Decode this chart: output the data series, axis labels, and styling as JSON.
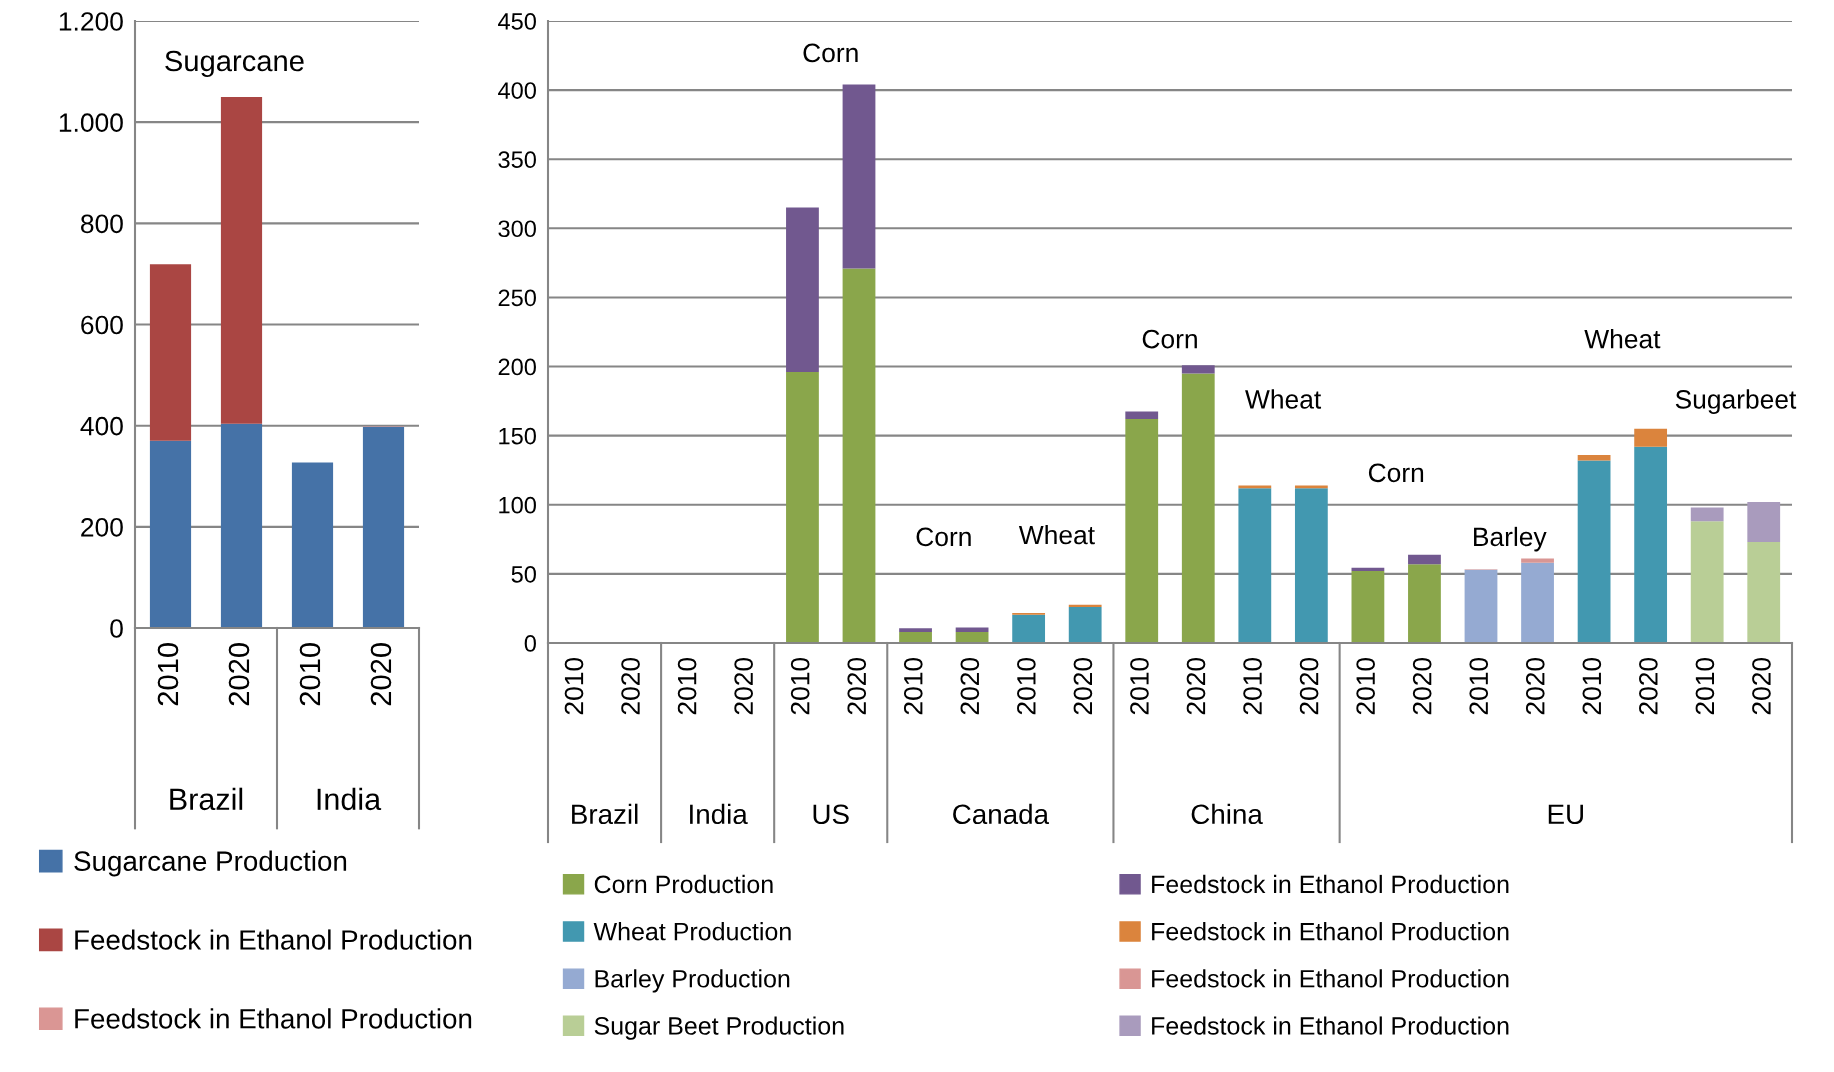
{
  "chart_data": [
    {
      "type": "bar",
      "stacked": true,
      "categories": [
        "2010",
        "2020",
        "2010",
        "2020"
      ],
      "series": [
        {
          "name": "Sugarcane Production",
          "color": "#4572a7",
          "values": [
            370,
            404,
            327,
            398
          ]
        },
        {
          "name": "Feedstock in Ethanol Production",
          "color": "#aa4643",
          "values": [
            349,
            646,
            null,
            null
          ]
        },
        {
          "name": "Feedstock in Ethanol Production",
          "color": "#da9694",
          "values": [
            null,
            null,
            null,
            1
          ]
        }
      ],
      "ylim": [
        0,
        1200
      ],
      "yticks": [
        0,
        200,
        400,
        600,
        800,
        {
          "value": 1000,
          "label": "1.000"
        },
        {
          "value": 1200,
          "label": "1.200"
        }
      ],
      "grid": "y",
      "legend": "bottom",
      "annotations": [
        "Brazil",
        "India",
        "Sugarcane"
      ]
    },
    {
      "type": "bar",
      "stacked": true,
      "categories": [
        "2010",
        "2020",
        "2010",
        "2020",
        "2010",
        "2020",
        "2010",
        "2020",
        "2010",
        "2020",
        "2010",
        "2020",
        "2010",
        "2020",
        "2010",
        "2020",
        "2010",
        "2020",
        "2010",
        "2020",
        "2010",
        "2020"
      ],
      "series": [
        {
          "name": "Corn Production",
          "color": "#8aa64b",
          "values": [
            null,
            null,
            null,
            null,
            196,
            271,
            8,
            8,
            null,
            null,
            162,
            195,
            null,
            null,
            52,
            57,
            null,
            null,
            null,
            null,
            null,
            null
          ]
        },
        {
          "name": "Wheat Production",
          "color": "#4298b0",
          "values": [
            null,
            null,
            null,
            null,
            null,
            null,
            null,
            null,
            20.5,
            26,
            null,
            null,
            112,
            112,
            null,
            null,
            null,
            null,
            132,
            142,
            null,
            null
          ]
        },
        {
          "name": "Barley Production",
          "color": "#95aad2",
          "values": [
            null,
            null,
            null,
            null,
            null,
            null,
            null,
            null,
            null,
            null,
            null,
            null,
            null,
            null,
            null,
            null,
            53,
            58,
            null,
            null,
            null,
            null
          ]
        },
        {
          "name": "Sugar Beet Production",
          "color": "#b9ce96",
          "values": [
            null,
            null,
            null,
            null,
            null,
            null,
            null,
            null,
            null,
            null,
            null,
            null,
            null,
            null,
            null,
            null,
            null,
            null,
            null,
            null,
            88,
            73
          ]
        },
        {
          "name": "Feedstock in Ethanol Production",
          "color": "#71588f",
          "values": [
            null,
            null,
            null,
            null,
            119,
            133,
            2.7,
            3.2,
            null,
            null,
            5.5,
            6,
            null,
            null,
            2.4,
            6.8,
            null,
            null,
            null,
            null,
            null,
            null
          ]
        },
        {
          "name": "Feedstock in Ethanol Production",
          "color": "#db843d",
          "values": [
            null,
            null,
            null,
            null,
            null,
            null,
            null,
            null,
            1.2,
            1.7,
            null,
            null,
            2,
            2,
            null,
            null,
            null,
            null,
            4,
            13,
            null,
            null
          ]
        },
        {
          "name": "Feedstock in Ethanol Production",
          "color": "#d99694",
          "values": [
            null,
            null,
            null,
            null,
            null,
            null,
            null,
            null,
            null,
            null,
            null,
            null,
            null,
            null,
            null,
            null,
            0.4,
            3.2,
            null,
            null,
            null,
            null
          ]
        },
        {
          "name": "Feedstock in Ethanol Production",
          "color": "#a99bbd",
          "values": [
            null,
            null,
            null,
            null,
            null,
            null,
            null,
            null,
            null,
            null,
            null,
            null,
            null,
            null,
            null,
            null,
            null,
            null,
            null,
            null,
            10,
            29
          ]
        }
      ],
      "ylim": [
        0,
        450
      ],
      "yticks": [
        0,
        50,
        100,
        150,
        200,
        250,
        300,
        350,
        400,
        450
      ],
      "grid": "y",
      "legend": "bottom",
      "annotations": [
        "Brazil",
        "India",
        "US",
        "Canada",
        "China",
        "EU",
        "Corn",
        "Corn",
        "Wheat",
        "Corn",
        "Wheat",
        "Corn",
        "Barley",
        "Wheat",
        "Sugarbeet"
      ]
    }
  ]
}
